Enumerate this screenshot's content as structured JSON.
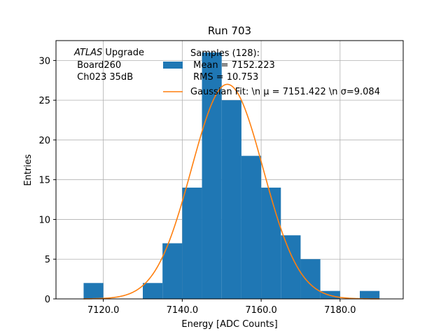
{
  "chart_data": {
    "type": "bar",
    "title": "Run 703",
    "xlabel": "Energy [ADC Counts]",
    "ylabel": "Entries",
    "xlim": [
      7108,
      7196
    ],
    "ylim": [
      0,
      32.5
    ],
    "grid": true,
    "bin_width": 5,
    "histogram": {
      "bin_edges": [
        7115,
        7120,
        7125,
        7130,
        7135,
        7140,
        7145,
        7150,
        7155,
        7160,
        7165,
        7170,
        7175,
        7180,
        7185,
        7190
      ],
      "counts": [
        2,
        0,
        0,
        2,
        7,
        14,
        31,
        25,
        18,
        14,
        8,
        5,
        1,
        0,
        1
      ],
      "color": "#1f77b4"
    },
    "gaussian_fit": {
      "mu": 7151.422,
      "sigma": 9.084,
      "amplitude": 27,
      "color": "#ff7f0e"
    },
    "xticks": [
      {
        "value": 7120,
        "label": "7120.0"
      },
      {
        "value": 7140,
        "label": "7140.0"
      },
      {
        "value": 7160,
        "label": "7160.0"
      },
      {
        "value": 7180,
        "label": "7180.0"
      }
    ],
    "yticks": [
      {
        "value": 0,
        "label": "0"
      },
      {
        "value": 5,
        "label": "5"
      },
      {
        "value": 10,
        "label": "10"
      },
      {
        "value": 15,
        "label": "15"
      },
      {
        "value": 20,
        "label": "20"
      },
      {
        "value": 25,
        "label": "25"
      },
      {
        "value": 30,
        "label": "30"
      }
    ],
    "legend": {
      "placement": "top-right",
      "entries": [
        {
          "kind": "bar",
          "lines": [
            "Samples (128):",
            " Mean = 7152.223",
            " RMS = 10.753"
          ]
        },
        {
          "kind": "line",
          "lines": [
            "Gaussian Fit: \\n μ = 7151.422 \\n σ=9.084"
          ]
        }
      ]
    },
    "annotation": {
      "italic": "ATLAS",
      "rest": " Upgrade",
      "lines": [
        " Board260",
        " Ch023 35dB"
      ]
    }
  }
}
